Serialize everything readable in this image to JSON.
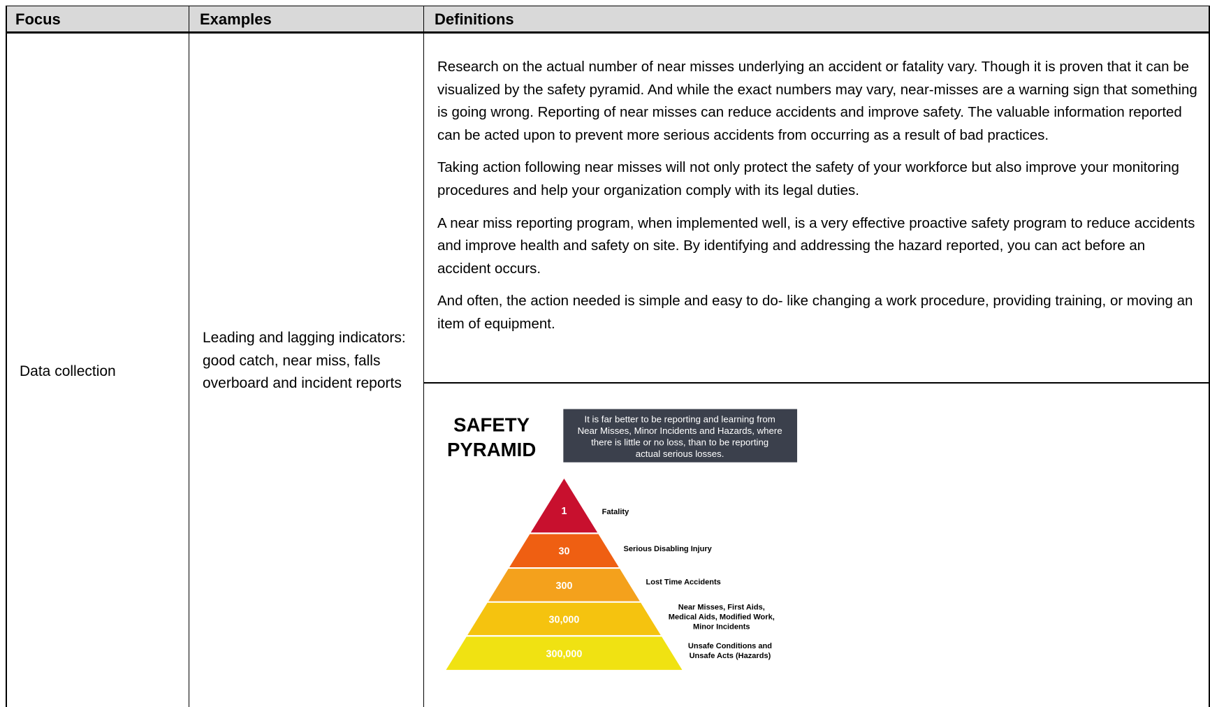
{
  "table": {
    "headers": [
      "Focus",
      "Examples",
      "Definitions"
    ],
    "focus": "Data collection",
    "examples": "Leading and lagging indicators: good catch, near miss, falls overboard and incident reports",
    "definitions": [
      "Research on the actual number of near misses underlying an accident or fatality vary. Though it is proven that it can be visualized by the safety pyramid. And while the exact numbers may vary, near-misses are a warning sign that something is going wrong. Reporting of near misses can reduce accidents and improve safety. The valuable information reported can be acted upon to prevent more serious accidents from occurring as a result of bad practices.",
      "Taking action following near misses will not only protect the safety of your workforce but also improve your monitoring procedures and help your organization comply with its legal duties.",
      "A near miss reporting program, when implemented well, is a very effective proactive safety program to reduce accidents and improve health and safety on site. By identifying and addressing the hazard reported, you can act before an accident occurs.",
      "And often, the action needed is simple and easy to do- like changing a work procedure, providing training, or moving an item of equipment."
    ]
  },
  "pyramid": {
    "title": [
      "SAFETY",
      "PYRAMID"
    ],
    "note": [
      "It is far better to be reporting and learning from",
      "Near Misses, Minor Incidents and Hazards, where",
      "there is little or no loss, than to be reporting",
      "actual serious losses."
    ],
    "levels": [
      {
        "count": "1",
        "label": [
          "Fatality"
        ]
      },
      {
        "count": "30",
        "label": [
          "Serious Disabling Injury"
        ]
      },
      {
        "count": "300",
        "label": [
          "Lost Time Accidents"
        ]
      },
      {
        "count": "30,000",
        "label": [
          "Near Misses, First Aids,",
          "Medical Aids, Modified Work,",
          "Minor Incidents"
        ]
      },
      {
        "count": "300,000",
        "label": [
          "Unsafe Conditions and",
          "Unsafe Acts (Hazards)"
        ]
      }
    ]
  }
}
